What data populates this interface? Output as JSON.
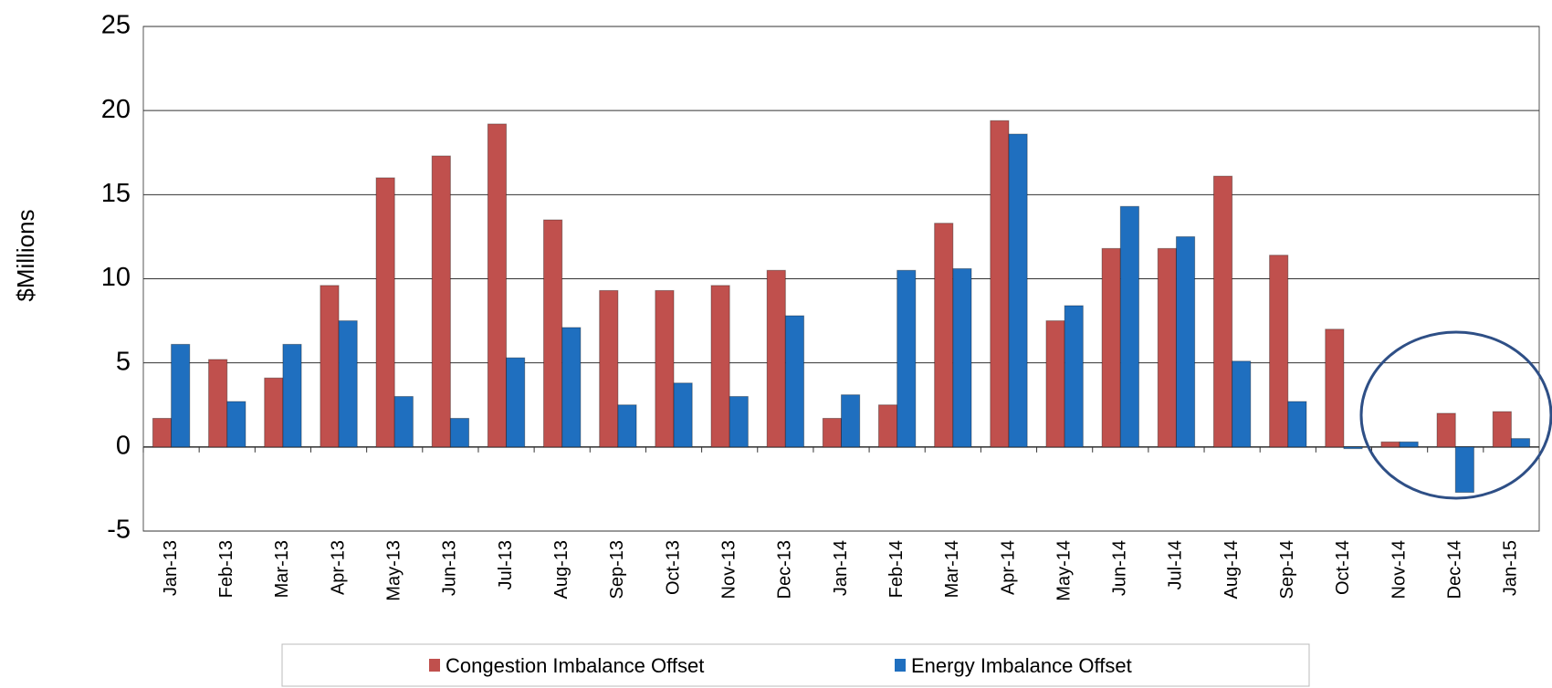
{
  "chart_data": {
    "type": "bar",
    "ylabel": "$Millions",
    "categories": [
      "Jan-13",
      "Feb-13",
      "Mar-13",
      "Apr-13",
      "May-13",
      "Jun-13",
      "Jul-13",
      "Aug-13",
      "Sep-13",
      "Oct-13",
      "Nov-13",
      "Dec-13",
      "Jan-14",
      "Feb-14",
      "Mar-14",
      "Apr-14",
      "May-14",
      "Jun-14",
      "Jul-14",
      "Aug-14",
      "Sep-14",
      "Oct-14",
      "Nov-14",
      "Dec-14",
      "Jan-15"
    ],
    "series": [
      {
        "name": "Congestion Imbalance Offset",
        "color": "#c0504d",
        "values": [
          1.7,
          5.2,
          4.1,
          9.6,
          16.0,
          17.3,
          19.2,
          13.5,
          9.3,
          9.3,
          9.6,
          10.5,
          1.7,
          2.5,
          13.3,
          19.4,
          7.5,
          11.8,
          11.8,
          16.1,
          11.4,
          7.0,
          0.3,
          2.0,
          2.1
        ]
      },
      {
        "name": "Energy Imbalance Offset",
        "color": "#1f6fbf",
        "values": [
          6.1,
          2.7,
          6.1,
          7.5,
          3.0,
          1.7,
          5.3,
          7.1,
          2.5,
          3.8,
          3.0,
          7.8,
          3.1,
          10.5,
          10.6,
          18.6,
          8.4,
          14.3,
          12.5,
          5.1,
          2.7,
          -0.1,
          0.3,
          -2.7,
          0.5
        ]
      }
    ],
    "ylim": [
      -5,
      25
    ],
    "yticks": [
      -5,
      0,
      5,
      10,
      15,
      20,
      25
    ],
    "grid": true,
    "legend": "bottom"
  }
}
